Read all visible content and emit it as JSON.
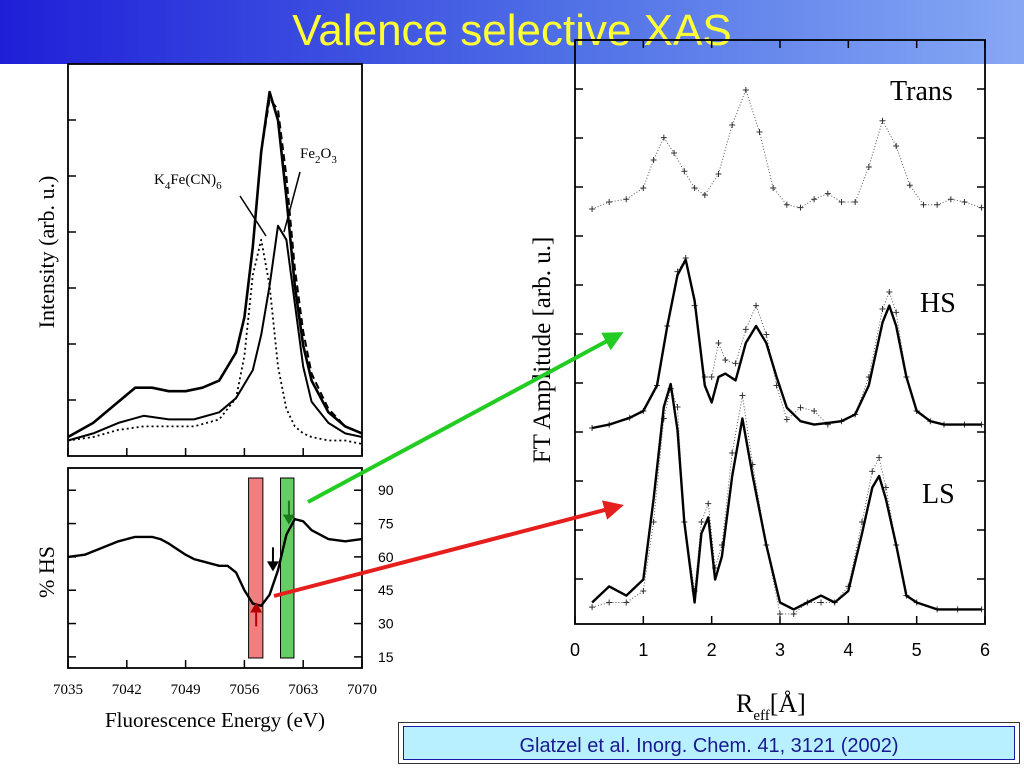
{
  "slide": {
    "title": "Valence selective XAS",
    "citation": "Glatzel  et al. Inorg. Chem. 41, 3121 (2002)",
    "colors": {
      "title_text": "#ffff33",
      "title_band": "#2a3be0",
      "citation_bg": "#b8f0ff",
      "arrow_green": "#22cc22",
      "arrow_red": "#e61e1e",
      "band_red": "#f08080",
      "band_green": "#66cc66"
    }
  },
  "chart_data": [
    {
      "type": "line",
      "xlim": [
        7035,
        7070
      ],
      "ylabel": "Intensity (arb. u.)",
      "x_ticks": [
        7035,
        7042,
        7049,
        7056,
        7063,
        7070
      ],
      "annotations": [
        {
          "text": "K",
          "sub1": "4",
          "mid": "Fe(CN)",
          "sub2": "6"
        },
        {
          "text": "Fe",
          "sub1": "2",
          "mid": "O",
          "sub2": "3"
        }
      ],
      "series": [
        {
          "style": "solid-total",
          "x": [
            7035,
            7038,
            7041,
            7043,
            7045,
            7047,
            7049,
            7051,
            7053,
            7055,
            7056,
            7057,
            7058,
            7059,
            7060,
            7061,
            7062,
            7063,
            7064,
            7066,
            7068,
            7070
          ],
          "y": [
            0.02,
            0.06,
            0.12,
            0.16,
            0.16,
            0.15,
            0.15,
            0.16,
            0.18,
            0.26,
            0.36,
            0.56,
            0.83,
            1.0,
            0.92,
            0.7,
            0.45,
            0.28,
            0.18,
            0.09,
            0.05,
            0.03
          ]
        },
        {
          "style": "dashed-total",
          "x": [
            7035,
            7038,
            7041,
            7043,
            7045,
            7047,
            7049,
            7051,
            7053,
            7055,
            7056,
            7057,
            7058,
            7059,
            7060,
            7061,
            7062,
            7063,
            7064,
            7066,
            7068,
            7070
          ],
          "y": [
            0.02,
            0.06,
            0.12,
            0.16,
            0.16,
            0.15,
            0.15,
            0.16,
            0.18,
            0.26,
            0.36,
            0.56,
            0.83,
            0.98,
            0.95,
            0.76,
            0.5,
            0.32,
            0.2,
            0.1,
            0.05,
            0.03
          ]
        },
        {
          "style": "solid",
          "x": [
            7035,
            7038,
            7041,
            7044,
            7047,
            7050,
            7053,
            7055,
            7057,
            7058,
            7059,
            7060,
            7061,
            7062,
            7063,
            7064,
            7066,
            7068,
            7070
          ],
          "y": [
            0.01,
            0.03,
            0.06,
            0.08,
            0.07,
            0.07,
            0.09,
            0.13,
            0.21,
            0.31,
            0.45,
            0.62,
            0.58,
            0.4,
            0.22,
            0.12,
            0.06,
            0.03,
            0.02
          ]
        },
        {
          "style": "dotted",
          "x": [
            7035,
            7038,
            7041,
            7044,
            7047,
            7050,
            7053,
            7055,
            7056,
            7057,
            7058,
            7059,
            7060,
            7061,
            7062,
            7063,
            7064,
            7066,
            7068,
            7070
          ],
          "y": [
            0.01,
            0.02,
            0.04,
            0.05,
            0.05,
            0.05,
            0.07,
            0.13,
            0.25,
            0.48,
            0.58,
            0.45,
            0.22,
            0.1,
            0.05,
            0.03,
            0.02,
            0.01,
            0.01,
            0.0
          ]
        }
      ]
    },
    {
      "type": "line",
      "xlabel": "Fluorescence Energy (eV)",
      "ylabel": "% HS",
      "xlim": [
        7035,
        7070
      ],
      "ylim": [
        10,
        100
      ],
      "x_ticks": [
        7035,
        7042,
        7049,
        7056,
        7063,
        7070
      ],
      "y_ticks": [
        15,
        30,
        45,
        60,
        75,
        90
      ],
      "x": [
        7035,
        7037,
        7039,
        7041,
        7042,
        7043,
        7044,
        7045,
        7046,
        7047,
        7049,
        7050,
        7051,
        7053,
        7054,
        7055,
        7056,
        7057,
        7058,
        7059,
        7060,
        7061,
        7062,
        7063,
        7064,
        7066,
        7068,
        7070
      ],
      "y": [
        60,
        61,
        64,
        67,
        68,
        69,
        69,
        69,
        68,
        66,
        61,
        59,
        58,
        56,
        56,
        53,
        45,
        39,
        38,
        43,
        54,
        70,
        77,
        76,
        72,
        68,
        67,
        68
      ],
      "bands": [
        {
          "color": "red",
          "x_range": [
            7056.5,
            7058.2
          ]
        },
        {
          "color": "green",
          "x_range": [
            7060.3,
            7061.9
          ]
        }
      ],
      "markers": [
        {
          "color": "green",
          "direction": "down",
          "x": 7061.3,
          "y": 79
        },
        {
          "color": "black",
          "direction": "down",
          "x": 7059.4,
          "y": 58
        },
        {
          "color": "red",
          "direction": "up",
          "x": 7057.4,
          "y": 35
        }
      ]
    },
    {
      "type": "line",
      "xlim": [
        0,
        6
      ],
      "ylabel": "FT Amplitude [arb. u.]",
      "xlabel_main": "R",
      "xlabel_sub": "eff",
      "xlabel_unit": "[Å]",
      "x_ticks": [
        0,
        1,
        2,
        3,
        4,
        5,
        6
      ],
      "panels": [
        {
          "label": "Trans",
          "crosses": {
            "x": [
              0.25,
              0.5,
              0.75,
              1.0,
              1.15,
              1.3,
              1.45,
              1.6,
              1.75,
              1.9,
              2.1,
              2.3,
              2.5,
              2.7,
              2.9,
              3.1,
              3.3,
              3.5,
              3.7,
              3.9,
              4.1,
              4.3,
              4.5,
              4.7,
              4.9,
              5.1,
              5.3,
              5.5,
              5.7,
              5.95
            ],
            "y": [
              0.15,
              0.2,
              0.22,
              0.3,
              0.5,
              0.66,
              0.55,
              0.42,
              0.3,
              0.25,
              0.4,
              0.75,
              1.0,
              0.7,
              0.3,
              0.18,
              0.16,
              0.22,
              0.26,
              0.2,
              0.2,
              0.45,
              0.78,
              0.6,
              0.32,
              0.18,
              0.18,
              0.22,
              0.2,
              0.16
            ]
          }
        },
        {
          "label": "HS",
          "solid": {
            "x": [
              0.25,
              0.5,
              0.8,
              1.0,
              1.2,
              1.35,
              1.5,
              1.62,
              1.75,
              1.9,
              2.0,
              2.1,
              2.2,
              2.35,
              2.5,
              2.65,
              2.8,
              2.95,
              3.1,
              3.3,
              3.5,
              3.7,
              3.9,
              4.1,
              4.3,
              4.5,
              4.6,
              4.7,
              4.85,
              5.0,
              5.2,
              5.4,
              5.7,
              5.95
            ],
            "y": [
              0.0,
              0.02,
              0.06,
              0.1,
              0.25,
              0.6,
              0.9,
              0.99,
              0.75,
              0.25,
              0.15,
              0.3,
              0.32,
              0.28,
              0.5,
              0.6,
              0.5,
              0.3,
              0.12,
              0.04,
              0.02,
              0.03,
              0.04,
              0.08,
              0.25,
              0.62,
              0.72,
              0.6,
              0.3,
              0.1,
              0.04,
              0.02,
              0.02,
              0.02
            ]
          },
          "crosses": {
            "x": [
              0.25,
              0.5,
              0.8,
              1.0,
              1.2,
              1.35,
              1.5,
              1.62,
              1.75,
              1.9,
              2.0,
              2.1,
              2.2,
              2.35,
              2.5,
              2.65,
              2.8,
              2.95,
              3.1,
              3.3,
              3.5,
              3.7,
              3.9,
              4.1,
              4.3,
              4.5,
              4.6,
              4.7,
              4.85,
              5.0,
              5.2,
              5.4,
              5.7,
              5.95
            ],
            "y": [
              0.0,
              0.02,
              0.06,
              0.1,
              0.25,
              0.6,
              0.92,
              1.0,
              0.72,
              0.3,
              0.3,
              0.5,
              0.4,
              0.38,
              0.58,
              0.72,
              0.55,
              0.25,
              0.05,
              0.12,
              0.1,
              0.02,
              0.04,
              0.08,
              0.3,
              0.7,
              0.8,
              0.68,
              0.3,
              0.1,
              0.04,
              0.02,
              0.02,
              0.02
            ]
          }
        },
        {
          "label": "LS",
          "solid": {
            "x": [
              0.25,
              0.5,
              0.75,
              1.0,
              1.15,
              1.3,
              1.4,
              1.5,
              1.6,
              1.75,
              1.85,
              1.95,
              2.05,
              2.15,
              2.3,
              2.45,
              2.6,
              2.8,
              3.0,
              3.2,
              3.4,
              3.6,
              3.8,
              4.0,
              4.2,
              4.35,
              4.45,
              4.55,
              4.7,
              4.85,
              5.0,
              5.3,
              5.6,
              5.95
            ],
            "y": [
              0.05,
              0.12,
              0.08,
              0.15,
              0.5,
              0.9,
              1.0,
              0.8,
              0.4,
              0.05,
              0.35,
              0.42,
              0.15,
              0.25,
              0.6,
              0.85,
              0.6,
              0.3,
              0.05,
              0.02,
              0.05,
              0.08,
              0.05,
              0.1,
              0.35,
              0.55,
              0.6,
              0.5,
              0.3,
              0.08,
              0.05,
              0.02,
              0.02,
              0.02
            ]
          },
          "crosses": {
            "x": [
              0.25,
              0.5,
              0.75,
              1.0,
              1.15,
              1.3,
              1.4,
              1.5,
              1.6,
              1.75,
              1.85,
              1.95,
              2.05,
              2.15,
              2.3,
              2.45,
              2.6,
              2.8,
              3.0,
              3.2,
              3.4,
              3.6,
              3.8,
              4.0,
              4.2,
              4.35,
              4.45,
              4.55,
              4.7,
              4.85,
              5.0,
              5.3,
              5.6,
              5.95
            ],
            "y": [
              0.03,
              0.05,
              0.05,
              0.1,
              0.4,
              0.85,
              0.98,
              0.9,
              0.4,
              0.1,
              0.4,
              0.48,
              0.2,
              0.3,
              0.7,
              0.95,
              0.65,
              0.3,
              0.0,
              0.0,
              0.05,
              0.05,
              0.05,
              0.12,
              0.4,
              0.62,
              0.68,
              0.55,
              0.3,
              0.08,
              0.05,
              0.02,
              0.02,
              0.02
            ]
          }
        }
      ]
    }
  ]
}
